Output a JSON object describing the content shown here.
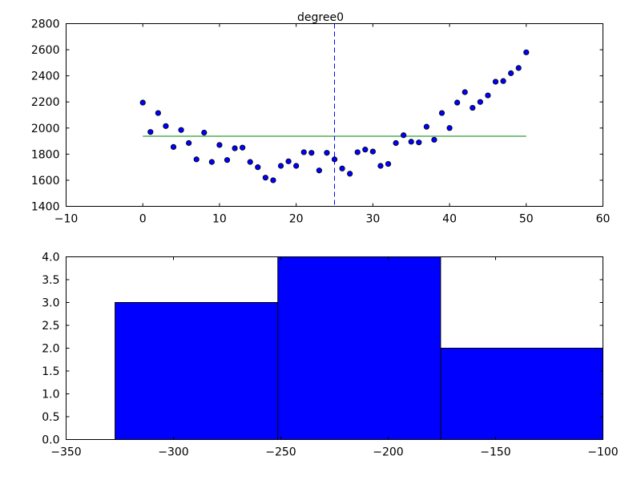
{
  "chart_data": [
    {
      "type": "scatter",
      "title": "degree0",
      "xlim": [
        -10,
        60
      ],
      "ylim": [
        1400,
        2800
      ],
      "xticks": [
        -10,
        0,
        10,
        20,
        30,
        40,
        50,
        60
      ],
      "yticks": [
        1400,
        1600,
        1800,
        2000,
        2200,
        2400,
        2600,
        2800
      ],
      "grid": false,
      "colors": {
        "points": "#0000ff",
        "fit_line": "#008000",
        "vline": "#0000ff"
      },
      "points": {
        "x": [
          0,
          1,
          2,
          3,
          4,
          5,
          6,
          7,
          8,
          9,
          10,
          11,
          12,
          13,
          14,
          15,
          16,
          17,
          18,
          19,
          20,
          21,
          22,
          23,
          24,
          25,
          26,
          27,
          28,
          29,
          30,
          31,
          32,
          33,
          34,
          35,
          36,
          37,
          38,
          39,
          40,
          41,
          42,
          43,
          44,
          45,
          46,
          47,
          48,
          49,
          50
        ],
        "y": [
          2195,
          1970,
          2115,
          2015,
          1855,
          1985,
          1885,
          1760,
          1965,
          1740,
          1870,
          1755,
          1845,
          1850,
          1740,
          1700,
          1620,
          1600,
          1710,
          1745,
          1710,
          1815,
          1810,
          1675,
          1810,
          1760,
          1690,
          1650,
          1815,
          1835,
          1820,
          1710,
          1725,
          1885,
          1945,
          1895,
          1890,
          2010,
          1910,
          2115,
          2000,
          2195,
          2275,
          2155,
          2200,
          2250,
          2355,
          2360,
          2420,
          2460,
          2580
        ]
      },
      "fit_line": {
        "x": [
          0,
          50
        ],
        "y": [
          1937,
          1937
        ]
      },
      "vline": {
        "x": 25,
        "style": "dashed"
      }
    },
    {
      "type": "bar",
      "xlim": [
        -350,
        -100
      ],
      "ylim": [
        0,
        4
      ],
      "xticks": [
        -350,
        -300,
        -250,
        -200,
        -150,
        -100
      ],
      "xtick_labels": [
        "−350",
        "−300",
        "−250",
        "−200",
        "−150",
        "−100"
      ],
      "yticks": [
        0,
        0.5,
        1,
        1.5,
        2,
        2.5,
        3,
        3.5,
        4
      ],
      "ytick_labels": [
        "0.0",
        "0.5",
        "1.0",
        "1.5",
        "2.0",
        "2.5",
        "3.0",
        "3.5",
        "4.0"
      ],
      "grid": false,
      "colors": {
        "bars": "#0000ff"
      },
      "bins": [
        {
          "x0": -327.2,
          "x1": -251.4,
          "value": 3
        },
        {
          "x0": -251.4,
          "x1": -175.6,
          "value": 4
        },
        {
          "x0": -175.6,
          "x1": -99.8,
          "value": 2
        }
      ]
    }
  ]
}
